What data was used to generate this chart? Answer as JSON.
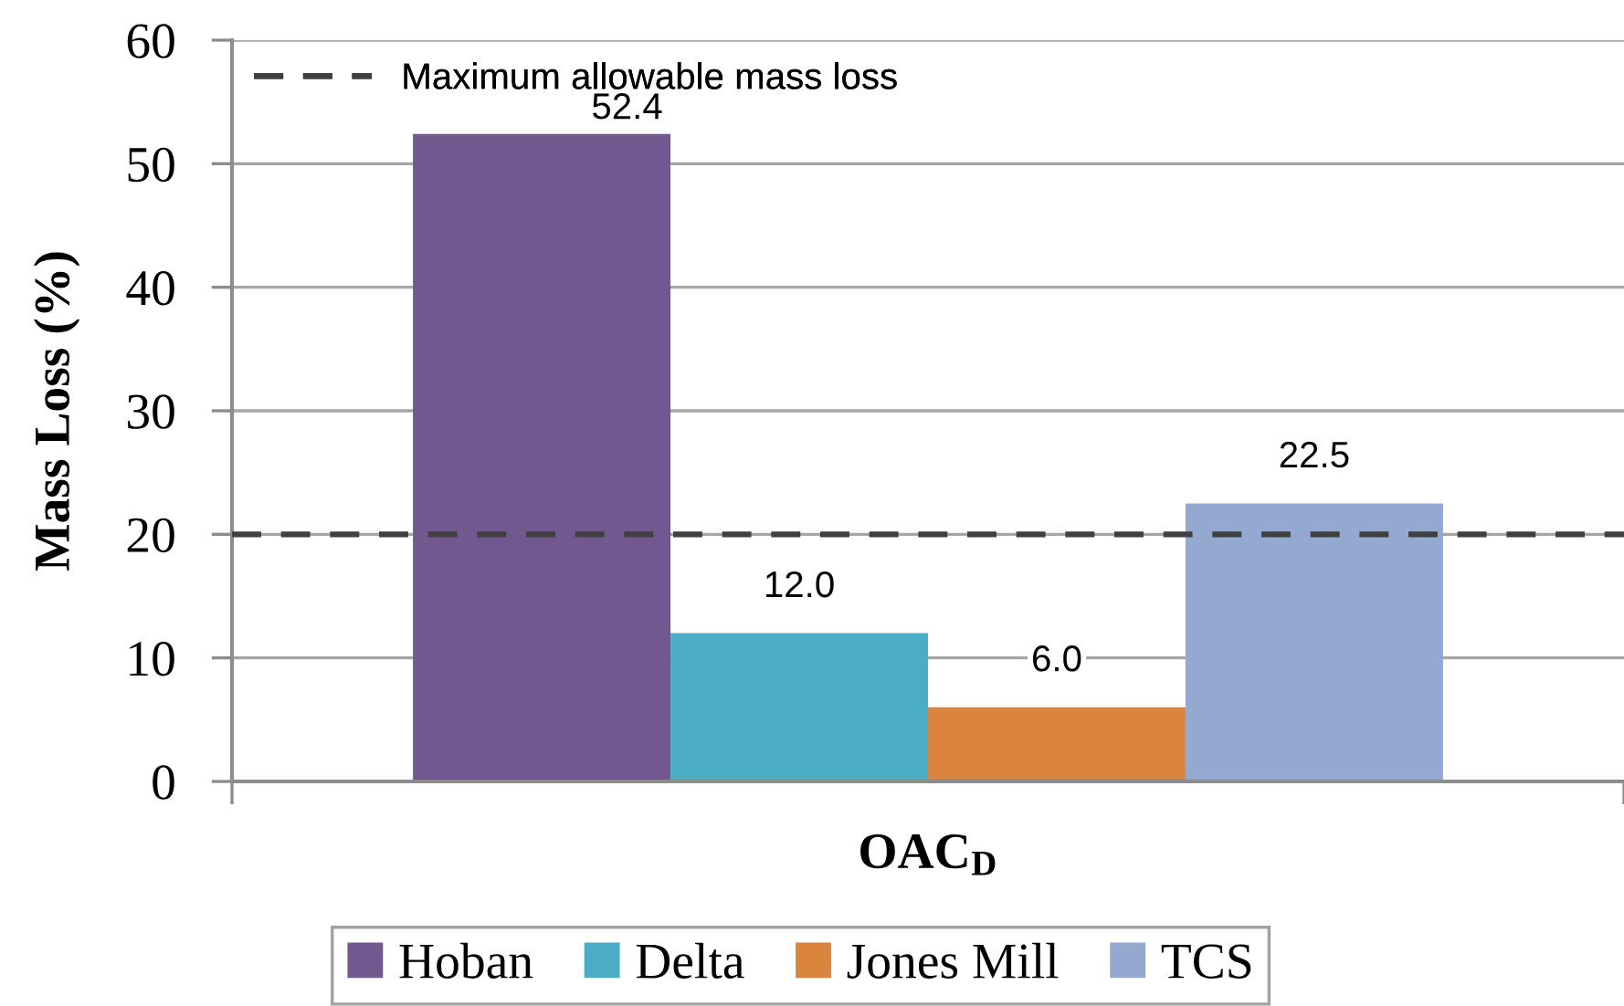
{
  "chart_data": {
    "type": "bar",
    "xlabel": "OAC$_{D}$",
    "ylabel": "Mass Loss (%)",
    "categories": [
      null
    ],
    "series": [
      {
        "name": "Hoban",
        "color": "#71588f",
        "values": [
          52.4
        ],
        "value_labels": [
          "52.4"
        ]
      },
      {
        "name": "Delta",
        "color": "#4bacc6",
        "values": [
          12.0
        ],
        "value_labels": [
          "12.0"
        ]
      },
      {
        "name": "Jones Mill",
        "color": "#db843d",
        "values": [
          6.0
        ],
        "value_labels": [
          "6.0"
        ]
      },
      {
        "name": "TCS",
        "color": "#93a9cf",
        "values": [
          22.5
        ],
        "value_labels": [
          "22.5"
        ]
      }
    ],
    "ylim": [
      0,
      60
    ],
    "yticks": [
      0,
      10,
      20,
      30,
      40,
      50,
      60
    ],
    "grid": "y",
    "legend": "bottom",
    "ref_lines": [
      {
        "axis": "y",
        "value": 20,
        "label": "Maximum allowable mass loss",
        "color": "#404040",
        "line_style": "dashed"
      }
    ]
  }
}
